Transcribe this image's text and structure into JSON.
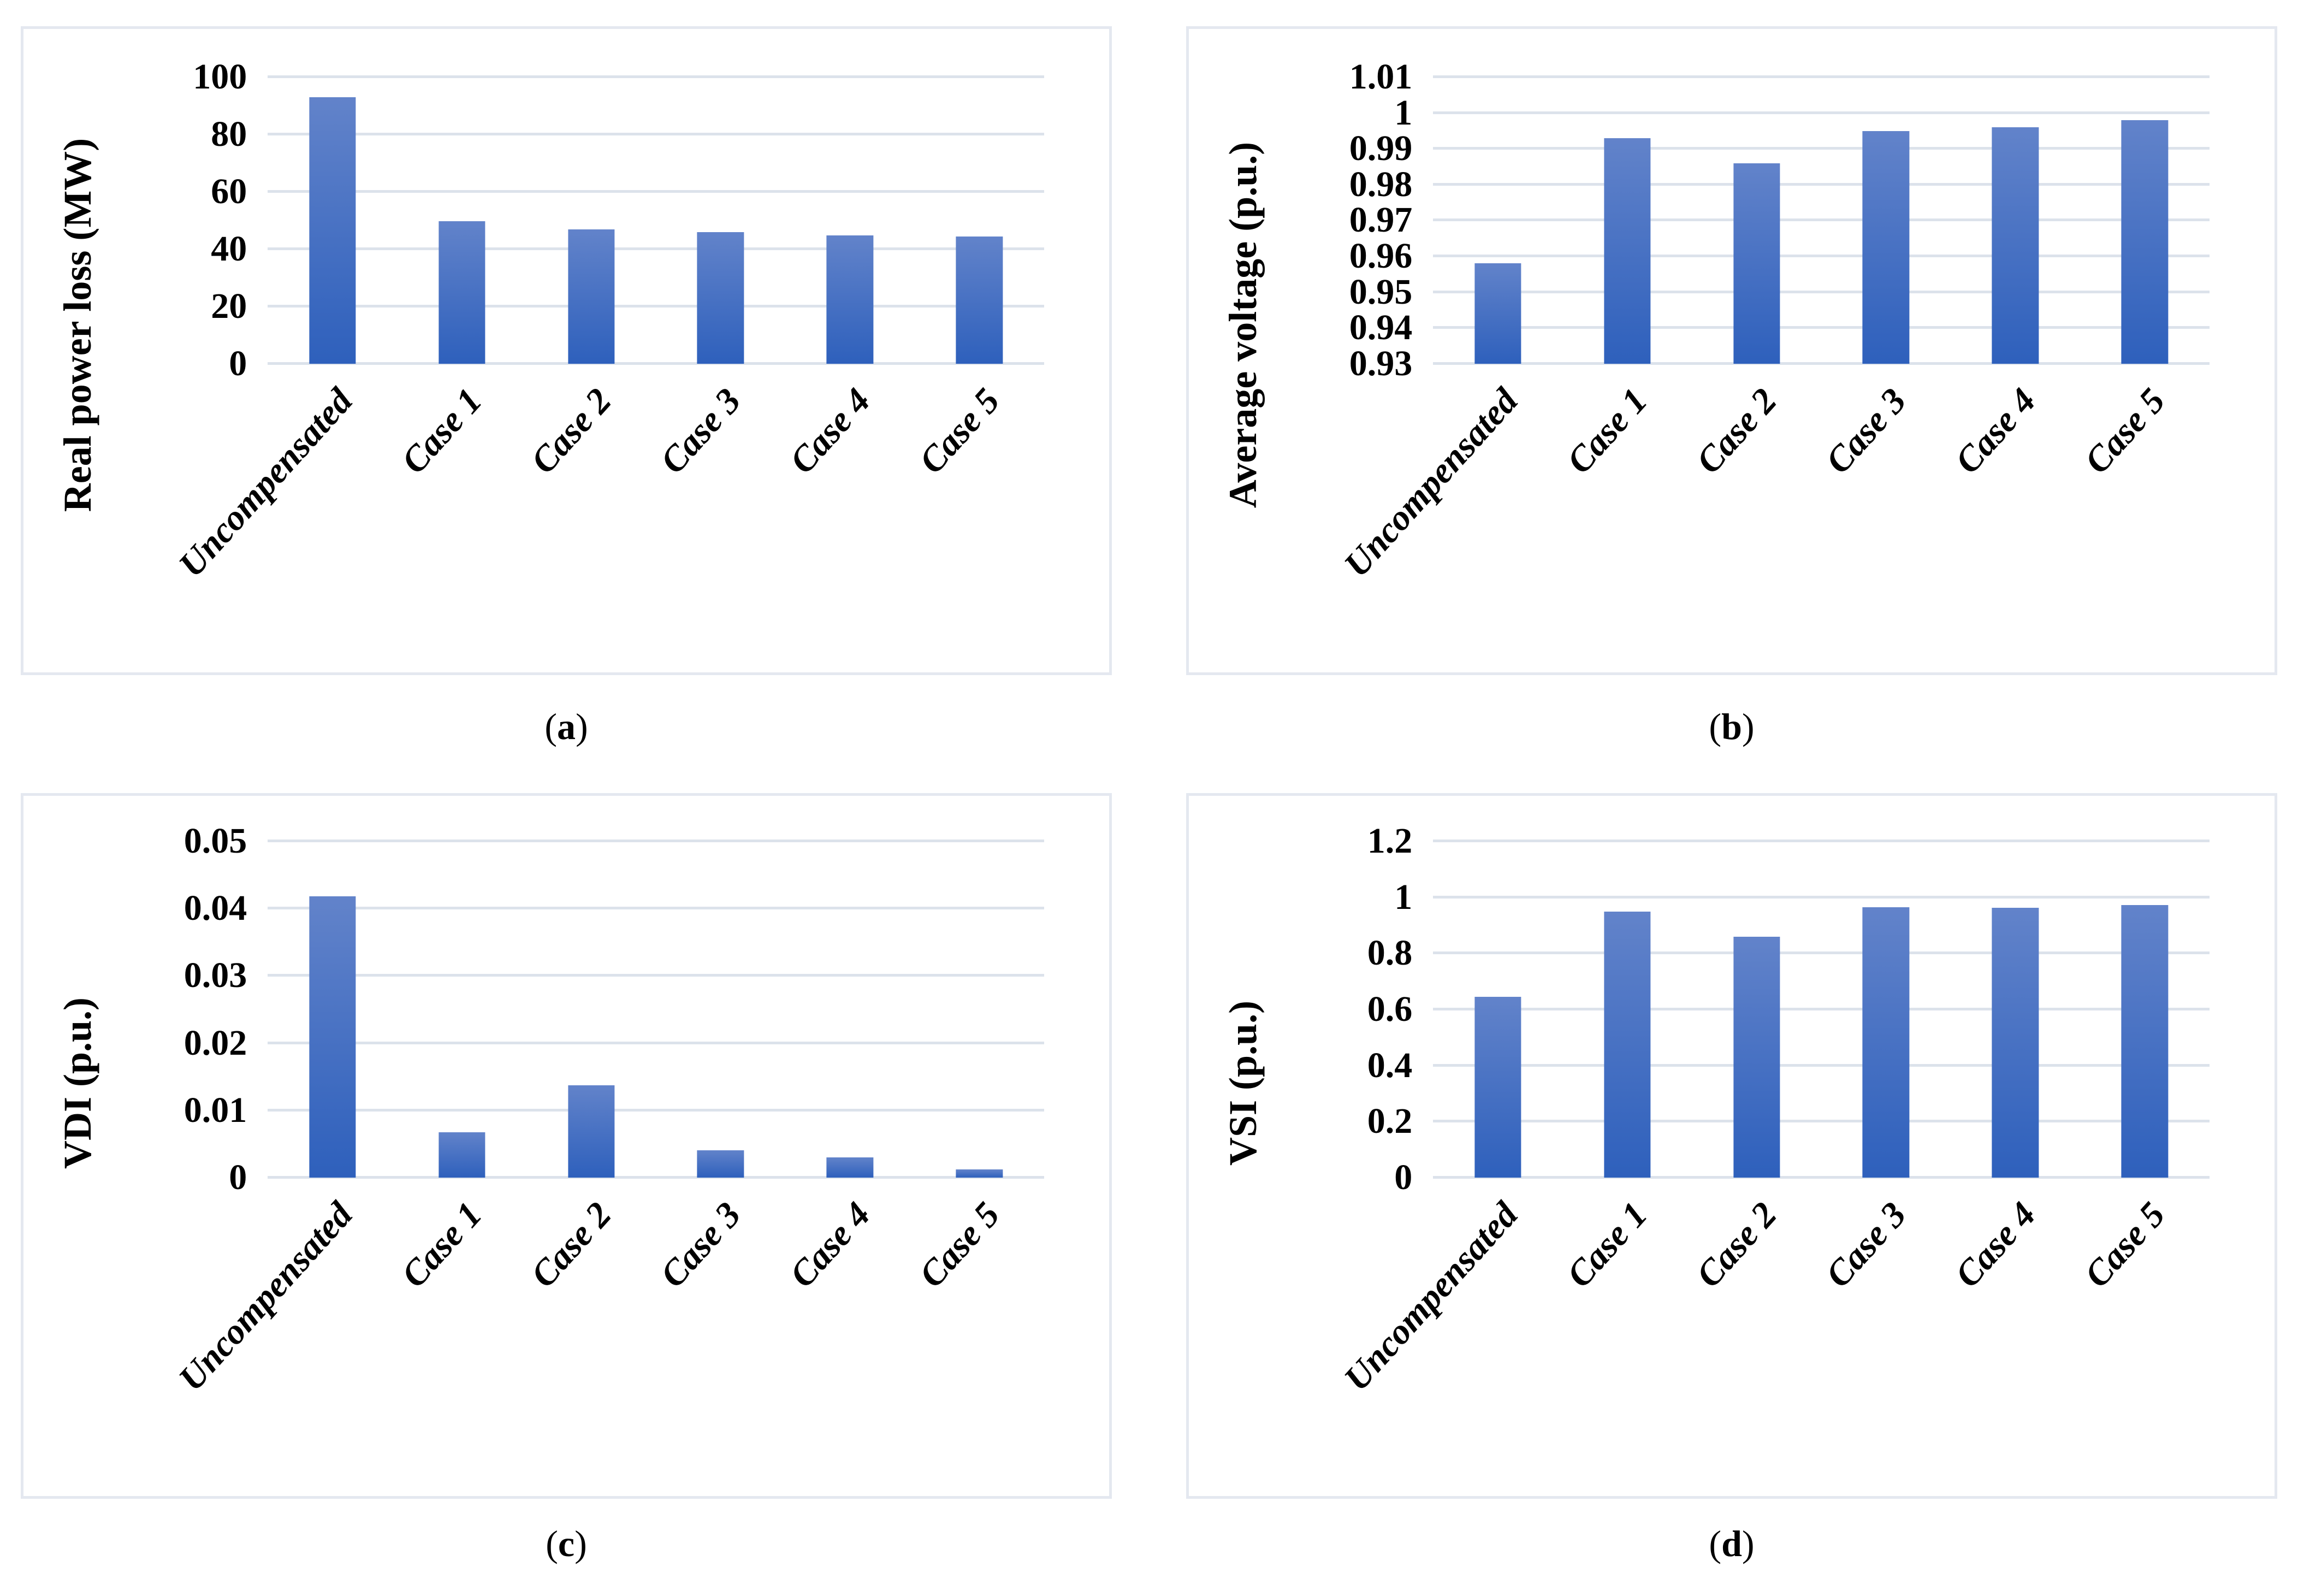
{
  "figure": {
    "paren_open": "(",
    "paren_close": ")",
    "colors": {
      "bar_gradient_top": "#6283CA",
      "bar_gradient_bottom": "#2E60BC",
      "gridline": "#DCE2EB",
      "panel_border": "#E4E8F0",
      "background": "#FFFFFF",
      "text": "#000000"
    }
  },
  "chart_data": [
    {
      "id": "a",
      "caption_letter": "a",
      "type": "bar",
      "title": "",
      "xlabel": "",
      "ylabel": "Real power loss (MW)",
      "categories": [
        "Uncompensated",
        "Case 1",
        "Case 2",
        "Case 3",
        "Case 4",
        "Case 5"
      ],
      "values": [
        93,
        49.8,
        46.8,
        45.9,
        44.8,
        44.3
      ],
      "ylim": [
        0,
        100
      ],
      "yticks": [
        0,
        20,
        40,
        60,
        80,
        100
      ],
      "ytick_labels": [
        "0",
        "20",
        "40",
        "60",
        "80",
        "100"
      ],
      "grid": true,
      "legend": false
    },
    {
      "id": "b",
      "caption_letter": "b",
      "type": "bar",
      "title": "",
      "xlabel": "",
      "ylabel": "Average voltage (p.u.)",
      "categories": [
        "Uncompensated",
        "Case 1",
        "Case 2",
        "Case 3",
        "Case 4",
        "Case 5"
      ],
      "values": [
        0.958,
        0.993,
        0.986,
        0.995,
        0.996,
        0.998
      ],
      "ylim": [
        0.93,
        1.01
      ],
      "yticks": [
        0.93,
        0.94,
        0.95,
        0.96,
        0.97,
        0.98,
        0.99,
        1,
        1.01
      ],
      "ytick_labels": [
        "0.93",
        "0.94",
        "0.95",
        "0.96",
        "0.97",
        "0.98",
        "0.99",
        "1",
        "1.01"
      ],
      "grid": true,
      "legend": false
    },
    {
      "id": "c",
      "caption_letter": "c",
      "type": "bar",
      "title": "",
      "xlabel": "",
      "ylabel": "VDI (p.u.)",
      "categories": [
        "Uncompensated",
        "Case 1",
        "Case 2",
        "Case 3",
        "Case 4",
        "Case 5"
      ],
      "values": [
        0.0418,
        0.0067,
        0.0137,
        0.004,
        0.003,
        0.0012
      ],
      "ylim": [
        0,
        0.05
      ],
      "yticks": [
        0,
        0.01,
        0.02,
        0.03,
        0.04,
        0.05
      ],
      "ytick_labels": [
        "0",
        "0.01",
        "0.02",
        "0.03",
        "0.04",
        "0.05"
      ],
      "grid": true,
      "legend": false
    },
    {
      "id": "d",
      "caption_letter": "d",
      "type": "bar",
      "title": "",
      "xlabel": "",
      "ylabel": "VSI (p.u.)",
      "categories": [
        "Uncompensated",
        "Case 1",
        "Case 2",
        "Case 3",
        "Case 4",
        "Case 5"
      ],
      "values": [
        0.645,
        0.95,
        0.86,
        0.965,
        0.962,
        0.972
      ],
      "ylim": [
        0,
        1.2
      ],
      "yticks": [
        0,
        0.2,
        0.4,
        0.6,
        0.8,
        1,
        1.2
      ],
      "ytick_labels": [
        "0",
        "0.2",
        "0.4",
        "0.6",
        "0.8",
        "1",
        "1.2"
      ],
      "grid": true,
      "legend": false
    }
  ]
}
